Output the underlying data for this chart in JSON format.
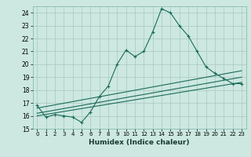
{
  "title": "",
  "xlabel": "Humidex (Indice chaleur)",
  "background_color": "#cce8e0",
  "grid_color": "#aac8c0",
  "line_color": "#1a6b5a",
  "ylim": [
    15,
    24.5
  ],
  "xlim": [
    -0.5,
    23.5
  ],
  "yticks": [
    15,
    16,
    17,
    18,
    19,
    20,
    21,
    22,
    23,
    24
  ],
  "xticks": [
    0,
    1,
    2,
    3,
    4,
    5,
    6,
    7,
    8,
    9,
    10,
    11,
    12,
    13,
    14,
    15,
    16,
    17,
    18,
    19,
    20,
    21,
    22,
    23
  ],
  "line1_x": [
    0,
    1,
    2,
    3,
    4,
    5,
    6,
    7,
    8,
    9,
    10,
    11,
    12,
    13,
    14,
    15,
    16,
    17,
    18,
    19,
    20,
    21,
    22,
    23
  ],
  "line1_y": [
    16.8,
    15.9,
    16.1,
    16.0,
    15.9,
    15.5,
    16.3,
    17.5,
    18.3,
    20.0,
    21.1,
    20.6,
    21.0,
    22.5,
    24.3,
    24.0,
    23.0,
    22.2,
    21.0,
    19.8,
    19.3,
    18.9,
    18.5,
    18.5
  ],
  "line2_x": [
    0,
    23
  ],
  "line2_y": [
    16.2,
    19.0
  ],
  "line3_x": [
    0,
    23
  ],
  "line3_y": [
    16.0,
    18.6
  ],
  "line4_x": [
    0,
    23
  ],
  "line4_y": [
    16.6,
    19.5
  ]
}
